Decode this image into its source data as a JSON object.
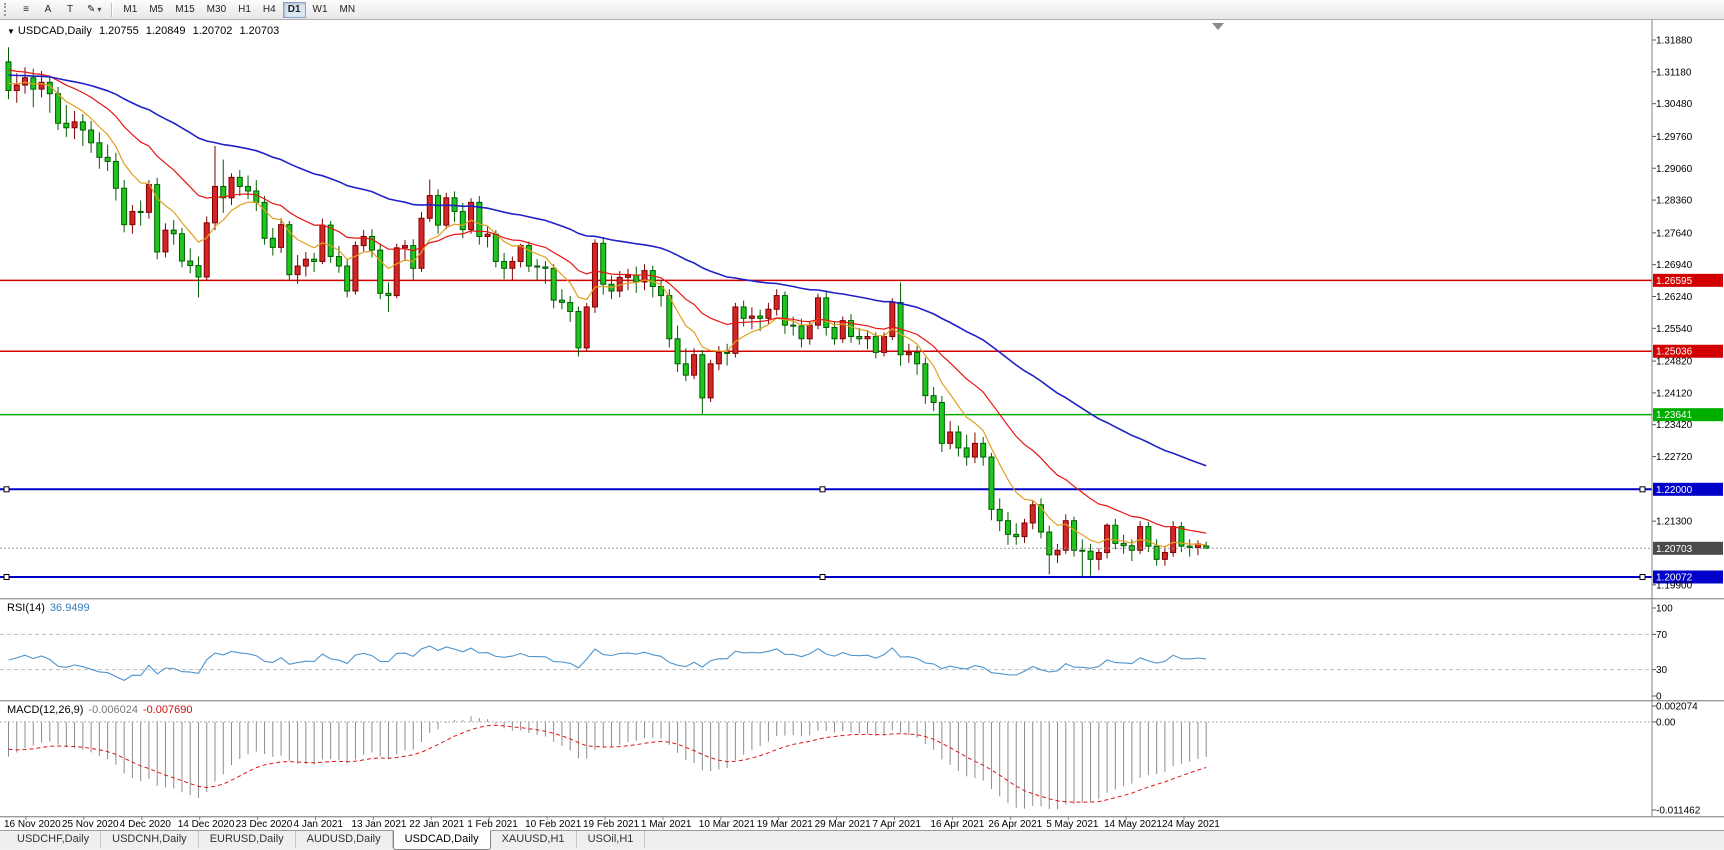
{
  "toolbar": {
    "icons": {
      "menu": "≡",
      "a_tool": "A",
      "t_tool": "T",
      "pencil": "✎",
      "dropdown": "▾"
    },
    "timeframes": [
      "M1",
      "M5",
      "M15",
      "M30",
      "H1",
      "H4",
      "D1",
      "W1",
      "MN"
    ],
    "active_timeframe": "D1"
  },
  "chart": {
    "symbol_marker": "▼",
    "title": {
      "symbol": "USDCAD,Daily",
      "open": "1.20755",
      "high": "1.20849",
      "low": "1.20702",
      "close": "1.20703"
    },
    "current_price": "1.20703",
    "y_axis_labels": [
      "1.31880",
      "1.31180",
      "1.30480",
      "1.29760",
      "1.29060",
      "1.28360",
      "1.27640",
      "1.26940",
      "1.26240",
      "1.25540",
      "1.24820",
      "1.24120",
      "1.23420",
      "1.22720",
      "1.21300",
      "1.19900"
    ],
    "levels": [
      {
        "value": 1.26595,
        "label": "1.26595",
        "color": "#d20000",
        "selected": false
      },
      {
        "value": 1.25036,
        "label": "1.25036",
        "color": "#d20000",
        "selected": false
      },
      {
        "value": 1.23641,
        "label": "1.23641",
        "color": "#00ae00",
        "selected": false
      },
      {
        "value": 1.22,
        "label": "1.22000",
        "color": "#0000c8",
        "selected": true
      },
      {
        "value": 1.20072,
        "label": "1.20072",
        "color": "#0000c8",
        "selected": true
      }
    ],
    "x_axis_labels": [
      "16 Nov 2020",
      "25 Nov 2020",
      "4 Dec 2020",
      "14 Dec 2020",
      "23 Dec 2020",
      "4 Jan 2021",
      "13 Jan 2021",
      "22 Jan 2021",
      "1 Feb 2021",
      "10 Feb 2021",
      "19 Feb 2021",
      "1 Mar 2021",
      "10 Mar 2021",
      "19 Mar 2021",
      "29 Mar 2021",
      "7 Apr 2021",
      "16 Apr 2021",
      "26 Apr 2021",
      "5 May 2021",
      "14 May 2021",
      "24 May 2021"
    ]
  },
  "rsi": {
    "name": "RSI(14)",
    "value": "36.9499",
    "axis_labels": [
      "100",
      "70",
      "30",
      "0"
    ],
    "guide_levels": [
      70,
      30
    ],
    "line_color": "#4f94cd"
  },
  "macd": {
    "name": "MACD(12,26,9)",
    "value_main": "-0.006024",
    "value_signal": "-0.007690",
    "axis_labels": [
      "0.002074",
      "0.00",
      "-0.011462"
    ],
    "scale_max": 0.002074,
    "scale_min": -0.011462,
    "histogram_color": "#8c8c8c",
    "signal_color": "#e01515"
  },
  "tabs": [
    {
      "label": "USDCHF,Daily",
      "active": false
    },
    {
      "label": "USDCNH,Daily",
      "active": false
    },
    {
      "label": "EURUSD,Daily",
      "active": false
    },
    {
      "label": "AUDUSD,Daily",
      "active": false
    },
    {
      "label": "USDCAD,Daily",
      "active": true
    },
    {
      "label": "XAUUSD,H1",
      "active": false
    },
    {
      "label": "USOil,H1",
      "active": false
    }
  ],
  "chart_data": {
    "type": "candlestick",
    "symbol": "USDCAD",
    "timeframe": "Daily",
    "price_axis": {
      "top": 1.3232,
      "bottom": 1.1961
    },
    "up_color": "#d42626",
    "down_color": "#1fc41f",
    "moving_averages": [
      {
        "period": 8,
        "color": "#e0a020"
      },
      {
        "period": 20,
        "color": "#e81414"
      },
      {
        "period": 55,
        "color": "#2020c8"
      }
    ],
    "candles": [
      [
        1.314,
        1.3172,
        1.3058,
        1.3077
      ],
      [
        1.3077,
        1.3115,
        1.305,
        1.3089
      ],
      [
        1.3089,
        1.3128,
        1.307,
        1.3105
      ],
      [
        1.3105,
        1.3125,
        1.304,
        1.308
      ],
      [
        1.308,
        1.312,
        1.3062,
        1.3095
      ],
      [
        1.3095,
        1.311,
        1.3028,
        1.307
      ],
      [
        1.307,
        1.3085,
        1.299,
        1.3005
      ],
      [
        1.3005,
        1.3045,
        1.2975,
        1.2995
      ],
      [
        1.2995,
        1.3032,
        1.297,
        1.3008
      ],
      [
        1.3008,
        1.3025,
        1.2955,
        1.299
      ],
      [
        1.299,
        1.301,
        1.294,
        1.2962
      ],
      [
        1.2962,
        1.2985,
        1.2905,
        1.293
      ],
      [
        1.293,
        1.2958,
        1.29,
        1.2921
      ],
      [
        1.2921,
        1.294,
        1.2835,
        1.2862
      ],
      [
        1.2862,
        1.288,
        1.2765,
        1.2782
      ],
      [
        1.2782,
        1.2825,
        1.2762,
        1.2811
      ],
      [
        1.2811,
        1.2835,
        1.278,
        1.2809
      ],
      [
        1.2809,
        1.288,
        1.2795,
        1.287
      ],
      [
        1.287,
        1.2885,
        1.2706,
        1.2722
      ],
      [
        1.2722,
        1.2785,
        1.271,
        1.277
      ],
      [
        1.277,
        1.2792,
        1.2738,
        1.2762
      ],
      [
        1.2762,
        1.2775,
        1.2688,
        1.2702
      ],
      [
        1.2702,
        1.273,
        1.2675,
        1.2692
      ],
      [
        1.2692,
        1.2712,
        1.2622,
        1.2667
      ],
      [
        1.2667,
        1.28,
        1.266,
        1.2786
      ],
      [
        1.2786,
        1.2955,
        1.277,
        1.2866
      ],
      [
        1.2866,
        1.2925,
        1.2808,
        1.2841
      ],
      [
        1.2841,
        1.2895,
        1.2825,
        1.2886
      ],
      [
        1.2886,
        1.2902,
        1.2845,
        1.2866
      ],
      [
        1.2866,
        1.289,
        1.2838,
        1.2856
      ],
      [
        1.2856,
        1.288,
        1.2812,
        1.2831
      ],
      [
        1.2831,
        1.2845,
        1.2738,
        1.2752
      ],
      [
        1.2752,
        1.2775,
        1.2714,
        1.2732
      ],
      [
        1.2732,
        1.2796,
        1.272,
        1.2782
      ],
      [
        1.2782,
        1.279,
        1.2658,
        1.2672
      ],
      [
        1.2672,
        1.2715,
        1.2652,
        1.2691
      ],
      [
        1.2691,
        1.2722,
        1.2668,
        1.2706
      ],
      [
        1.2706,
        1.272,
        1.2678,
        1.2701
      ],
      [
        1.2701,
        1.2795,
        1.2695,
        1.2781
      ],
      [
        1.2781,
        1.279,
        1.2698,
        1.2712
      ],
      [
        1.2712,
        1.2735,
        1.2676,
        1.2691
      ],
      [
        1.2691,
        1.2705,
        1.2622,
        1.2636
      ],
      [
        1.2636,
        1.2745,
        1.2628,
        1.2736
      ],
      [
        1.2736,
        1.277,
        1.2722,
        1.2756
      ],
      [
        1.2756,
        1.2772,
        1.271,
        1.2726
      ],
      [
        1.2726,
        1.274,
        1.2618,
        1.2631
      ],
      [
        1.2631,
        1.2655,
        1.259,
        1.2626
      ],
      [
        1.2626,
        1.274,
        1.262,
        1.2731
      ],
      [
        1.2731,
        1.2748,
        1.2702,
        1.2736
      ],
      [
        1.2736,
        1.275,
        1.266,
        1.2686
      ],
      [
        1.2686,
        1.281,
        1.2678,
        1.2796
      ],
      [
        1.2796,
        1.2881,
        1.2788,
        1.2846
      ],
      [
        1.2846,
        1.286,
        1.2762,
        1.2781
      ],
      [
        1.2781,
        1.2852,
        1.2772,
        1.2841
      ],
      [
        1.2841,
        1.2855,
        1.2788,
        1.2811
      ],
      [
        1.2811,
        1.283,
        1.2752,
        1.2771
      ],
      [
        1.2771,
        1.284,
        1.2762,
        1.2831
      ],
      [
        1.2831,
        1.2845,
        1.2738,
        1.2756
      ],
      [
        1.2756,
        1.278,
        1.2732,
        1.2761
      ],
      [
        1.2761,
        1.277,
        1.2688,
        1.2701
      ],
      [
        1.2701,
        1.272,
        1.2662,
        1.2686
      ],
      [
        1.2686,
        1.2712,
        1.266,
        1.2701
      ],
      [
        1.2701,
        1.274,
        1.2688,
        1.2736
      ],
      [
        1.2736,
        1.2745,
        1.2678,
        1.2691
      ],
      [
        1.2691,
        1.2706,
        1.2658,
        1.2689
      ],
      [
        1.2689,
        1.2702,
        1.2652,
        1.2686
      ],
      [
        1.2686,
        1.2695,
        1.2598,
        1.2616
      ],
      [
        1.2616,
        1.264,
        1.2596,
        1.2611
      ],
      [
        1.2611,
        1.2625,
        1.2568,
        1.2591
      ],
      [
        1.2591,
        1.2602,
        1.2492,
        1.2511
      ],
      [
        1.2511,
        1.261,
        1.2502,
        1.2601
      ],
      [
        1.2601,
        1.275,
        1.2588,
        1.2741
      ],
      [
        1.2741,
        1.2755,
        1.2628,
        1.2651
      ],
      [
        1.2651,
        1.267,
        1.2618,
        1.2636
      ],
      [
        1.2636,
        1.268,
        1.2622,
        1.2666
      ],
      [
        1.2666,
        1.2685,
        1.2638,
        1.2671
      ],
      [
        1.2671,
        1.269,
        1.2632,
        1.2656
      ],
      [
        1.2656,
        1.2695,
        1.2638,
        1.2681
      ],
      [
        1.2681,
        1.2692,
        1.2622,
        1.2646
      ],
      [
        1.2646,
        1.266,
        1.2602,
        1.2626
      ],
      [
        1.2626,
        1.264,
        1.2512,
        1.2531
      ],
      [
        1.2531,
        1.256,
        1.2458,
        1.2476
      ],
      [
        1.2476,
        1.251,
        1.2438,
        1.2451
      ],
      [
        1.2451,
        1.251,
        1.2442,
        1.2496
      ],
      [
        1.2496,
        1.2506,
        1.2365,
        1.2401
      ],
      [
        1.2401,
        1.2485,
        1.2392,
        1.2476
      ],
      [
        1.2476,
        1.2515,
        1.2462,
        1.2501
      ],
      [
        1.2501,
        1.252,
        1.2472,
        1.2499
      ],
      [
        1.2499,
        1.261,
        1.249,
        1.2601
      ],
      [
        1.2601,
        1.2615,
        1.2558,
        1.2576
      ],
      [
        1.2576,
        1.26,
        1.2552,
        1.2581
      ],
      [
        1.2581,
        1.2595,
        1.2548,
        1.2576
      ],
      [
        1.2576,
        1.261,
        1.2562,
        1.2596
      ],
      [
        1.2596,
        1.264,
        1.2582,
        1.2626
      ],
      [
        1.2626,
        1.2635,
        1.2542,
        1.2561
      ],
      [
        1.2561,
        1.258,
        1.2538,
        1.2559
      ],
      [
        1.2559,
        1.2575,
        1.2512,
        1.2531
      ],
      [
        1.2531,
        1.257,
        1.2518,
        1.2561
      ],
      [
        1.2561,
        1.263,
        1.2552,
        1.2621
      ],
      [
        1.2621,
        1.2635,
        1.2538,
        1.2556
      ],
      [
        1.2556,
        1.257,
        1.2518,
        1.2531
      ],
      [
        1.2531,
        1.258,
        1.2522,
        1.2571
      ],
      [
        1.2571,
        1.2585,
        1.2522,
        1.2536
      ],
      [
        1.2536,
        1.2555,
        1.2518,
        1.2531
      ],
      [
        1.2531,
        1.255,
        1.2508,
        1.2536
      ],
      [
        1.2536,
        1.2545,
        1.2488,
        1.2501
      ],
      [
        1.2501,
        1.2545,
        1.2492,
        1.2536
      ],
      [
        1.2536,
        1.262,
        1.2528,
        1.2611
      ],
      [
        1.2611,
        1.2655,
        1.2472,
        1.2496
      ],
      [
        1.2496,
        1.252,
        1.2478,
        1.2501
      ],
      [
        1.2501,
        1.2515,
        1.2452,
        1.2476
      ],
      [
        1.2476,
        1.249,
        1.2388,
        1.2406
      ],
      [
        1.2406,
        1.2425,
        1.2372,
        1.2391
      ],
      [
        1.2391,
        1.2405,
        1.2282,
        1.2301
      ],
      [
        1.2301,
        1.235,
        1.2288,
        1.2326
      ],
      [
        1.2326,
        1.234,
        1.2272,
        1.2291
      ],
      [
        1.2291,
        1.232,
        1.2252,
        1.2271
      ],
      [
        1.2271,
        1.2325,
        1.2258,
        1.2301
      ],
      [
        1.2301,
        1.2315,
        1.2252,
        1.2271
      ],
      [
        1.2271,
        1.228,
        1.2132,
        1.2156
      ],
      [
        1.2156,
        1.218,
        1.2108,
        1.2131
      ],
      [
        1.2131,
        1.215,
        1.2078,
        1.2101
      ],
      [
        1.2101,
        1.2125,
        1.2078,
        1.2096
      ],
      [
        1.2096,
        1.2135,
        1.2082,
        1.2126
      ],
      [
        1.2126,
        1.2175,
        1.2112,
        1.2166
      ],
      [
        1.2166,
        1.218,
        1.2092,
        1.2106
      ],
      [
        1.2106,
        1.212,
        1.2013,
        1.2056
      ],
      [
        1.2056,
        1.208,
        1.2038,
        1.2066
      ],
      [
        1.2066,
        1.2145,
        1.2058,
        1.2131
      ],
      [
        1.2131,
        1.214,
        1.2052,
        1.2066
      ],
      [
        1.2066,
        1.209,
        1.2008,
        1.2064
      ],
      [
        1.2064,
        1.208,
        1.201,
        1.2046
      ],
      [
        1.2046,
        1.207,
        1.2022,
        1.2061
      ],
      [
        1.2061,
        1.2125,
        1.2048,
        1.2121
      ],
      [
        1.2121,
        1.2135,
        1.2068,
        1.2081
      ],
      [
        1.2081,
        1.21,
        1.2058,
        1.2076
      ],
      [
        1.2076,
        1.209,
        1.2042,
        1.2066
      ],
      [
        1.2066,
        1.213,
        1.2058,
        1.2118
      ],
      [
        1.2118,
        1.2128,
        1.2062,
        1.2075
      ],
      [
        1.2075,
        1.209,
        1.2032,
        1.2046
      ],
      [
        1.2046,
        1.2075,
        1.2032,
        1.2061
      ],
      [
        1.2061,
        1.213,
        1.2052,
        1.2118
      ],
      [
        1.2118,
        1.2128,
        1.2062,
        1.2075
      ],
      [
        1.2075,
        1.209,
        1.2052,
        1.2072
      ],
      [
        1.2072,
        1.2088,
        1.2055,
        1.208
      ],
      [
        1.20755,
        1.20849,
        1.20702,
        1.20703
      ]
    ]
  }
}
